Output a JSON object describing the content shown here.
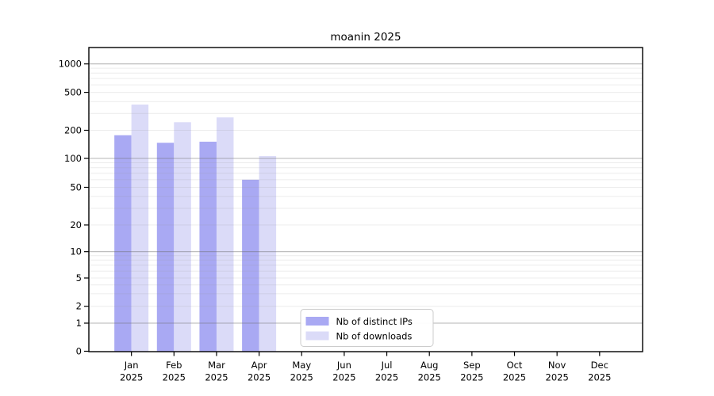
{
  "figure": {
    "background": "#ffffff"
  },
  "chart_data": {
    "type": "bar",
    "title": "moanin 2025",
    "scale": "symlog",
    "grid": true,
    "xlabel": "",
    "ylabel": "",
    "categories": [
      "Jan",
      "Feb",
      "Mar",
      "Apr",
      "May",
      "Jun",
      "Jul",
      "Aug",
      "Sep",
      "Oct",
      "Nov",
      "Dec"
    ],
    "category_year": "2025",
    "series": [
      {
        "name": "Nb of distinct IPs",
        "color": "#a9a9f3",
        "values": [
          177,
          147,
          151,
          60,
          null,
          null,
          null,
          null,
          null,
          null,
          null,
          null
        ]
      },
      {
        "name": "Nb of downloads",
        "color": "#dbdbf8",
        "values": [
          372,
          243,
          273,
          106,
          null,
          null,
          null,
          null,
          null,
          null,
          null,
          null
        ]
      }
    ],
    "yticks": [
      0,
      1,
      2,
      5,
      10,
      20,
      50,
      100,
      200,
      500,
      1000
    ],
    "ylim": [
      0,
      1500
    ],
    "legend_position": "lower center inside",
    "colors": {
      "axis": "#000000",
      "text": "#000000",
      "major_grid": "rgba(110,110,110,0.50)",
      "minor_grid": "rgba(150,150,150,0.18)",
      "legend_border": "#cccccc",
      "legend_bg": "#ffffff"
    }
  }
}
